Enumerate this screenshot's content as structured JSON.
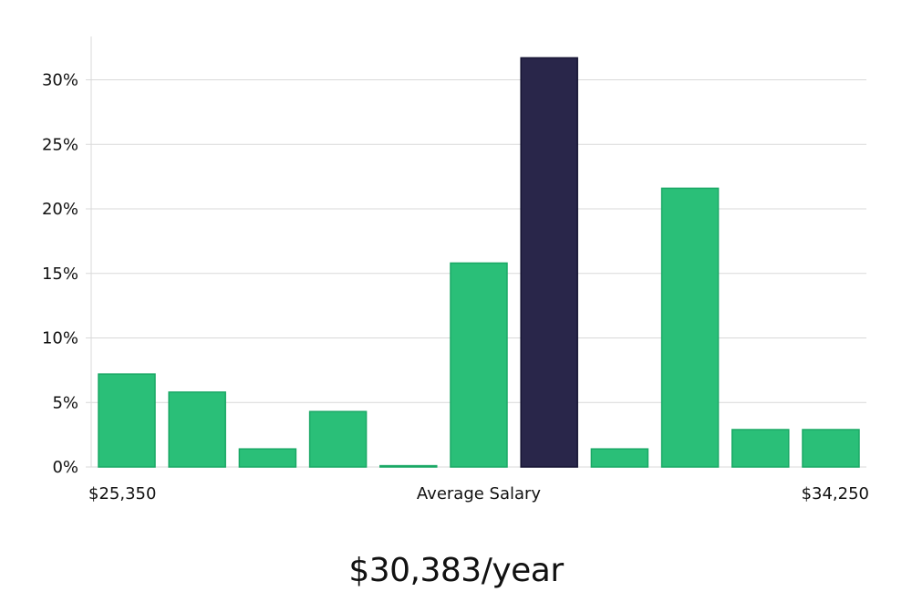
{
  "chart_data": {
    "type": "bar",
    "title": "",
    "xlabel": "Average Salary",
    "ylabel": "",
    "x_start_label": "$25,350",
    "x_end_label": "$34,250",
    "values": [
      7.2,
      5.8,
      1.4,
      4.3,
      0.1,
      15.8,
      31.7,
      1.4,
      21.6,
      2.9,
      2.9
    ],
    "highlight_index": 6,
    "ylim": [
      0,
      33
    ],
    "yticks": [
      0,
      5,
      10,
      15,
      20,
      25,
      30
    ],
    "ytick_suffix": "%",
    "grid": true,
    "colors": {
      "bar": "#2abf78",
      "bar_edge": "#1aa865",
      "highlight": "#29264a",
      "highlight_edge": "#161433"
    }
  },
  "salary": {
    "display": "$30,383/year"
  }
}
